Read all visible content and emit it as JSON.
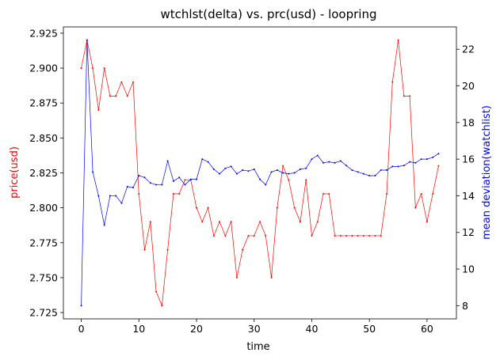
{
  "chart_data": {
    "type": "line",
    "title": "wtchlst(delta) vs. prc(usd) - loopring",
    "xlabel": "time",
    "x": [
      0,
      1,
      2,
      3,
      4,
      5,
      6,
      7,
      8,
      9,
      10,
      11,
      12,
      13,
      14,
      15,
      16,
      17,
      18,
      19,
      20,
      21,
      22,
      23,
      24,
      25,
      26,
      27,
      28,
      29,
      30,
      31,
      32,
      33,
      34,
      35,
      36,
      37,
      38,
      39,
      40,
      41,
      42,
      43,
      44,
      45,
      46,
      47,
      48,
      49,
      50,
      51,
      52,
      53,
      54,
      55,
      56,
      57,
      58,
      59,
      60,
      61,
      62
    ],
    "xlim": [
      -3.1,
      65.1
    ],
    "xticks": [
      0,
      10,
      20,
      30,
      40,
      50,
      60
    ],
    "series": [
      {
        "name": "price(usd)",
        "axis": "left",
        "color": "#ff0000",
        "values": [
          2.9,
          2.92,
          2.9,
          2.87,
          2.9,
          2.88,
          2.88,
          2.89,
          2.88,
          2.89,
          2.81,
          2.77,
          2.79,
          2.74,
          2.73,
          2.77,
          2.81,
          2.81,
          2.82,
          2.82,
          2.8,
          2.79,
          2.8,
          2.78,
          2.79,
          2.78,
          2.79,
          2.75,
          2.77,
          2.78,
          2.78,
          2.79,
          2.78,
          2.75,
          2.8,
          2.83,
          2.82,
          2.8,
          2.79,
          2.82,
          2.78,
          2.79,
          2.81,
          2.81,
          2.78,
          2.78,
          2.78,
          2.78,
          2.78,
          2.78,
          2.78,
          2.78,
          2.78,
          2.81,
          2.89,
          2.92,
          2.88,
          2.88,
          2.8,
          2.81,
          2.79,
          2.81,
          2.83
        ]
      },
      {
        "name": "mean deviation(watchlist)",
        "axis": "right",
        "color": "#0000ff",
        "values": [
          8.0,
          22.5,
          15.3,
          14.0,
          12.4,
          14.0,
          14.0,
          13.6,
          14.5,
          14.45,
          15.1,
          15.0,
          14.7,
          14.6,
          14.6,
          15.9,
          14.8,
          15.0,
          14.6,
          14.9,
          14.9,
          16.0,
          15.85,
          15.45,
          15.2,
          15.5,
          15.6,
          15.2,
          15.4,
          15.35,
          15.45,
          14.9,
          14.6,
          15.3,
          15.4,
          15.25,
          15.2,
          15.25,
          15.45,
          15.5,
          16.0,
          16.2,
          15.8,
          15.85,
          15.8,
          15.9,
          15.65,
          15.4,
          15.3,
          15.2,
          15.1,
          15.1,
          15.4,
          15.4,
          15.6,
          15.6,
          15.65,
          15.85,
          15.8,
          16.0,
          16.0,
          16.1,
          16.3
        ]
      }
    ],
    "y_left": {
      "label": "price(usd)",
      "color": "#ff0000",
      "ylim": [
        2.7205,
        2.9295
      ],
      "ticks": [
        2.725,
        2.75,
        2.775,
        2.8,
        2.825,
        2.85,
        2.875,
        2.9,
        2.925
      ],
      "tick_labels": [
        "2.725",
        "2.750",
        "2.775",
        "2.800",
        "2.825",
        "2.850",
        "2.875",
        "2.900",
        "2.925"
      ]
    },
    "y_right": {
      "label": "mean deviation(watchlist)",
      "color": "#0000ff",
      "ylim": [
        7.28,
        23.22
      ],
      "ticks": [
        8,
        10,
        12,
        14,
        16,
        18,
        20,
        22
      ],
      "tick_labels": [
        "8",
        "10",
        "12",
        "14",
        "16",
        "18",
        "20",
        "22"
      ]
    },
    "grid": false,
    "legend": "none"
  }
}
